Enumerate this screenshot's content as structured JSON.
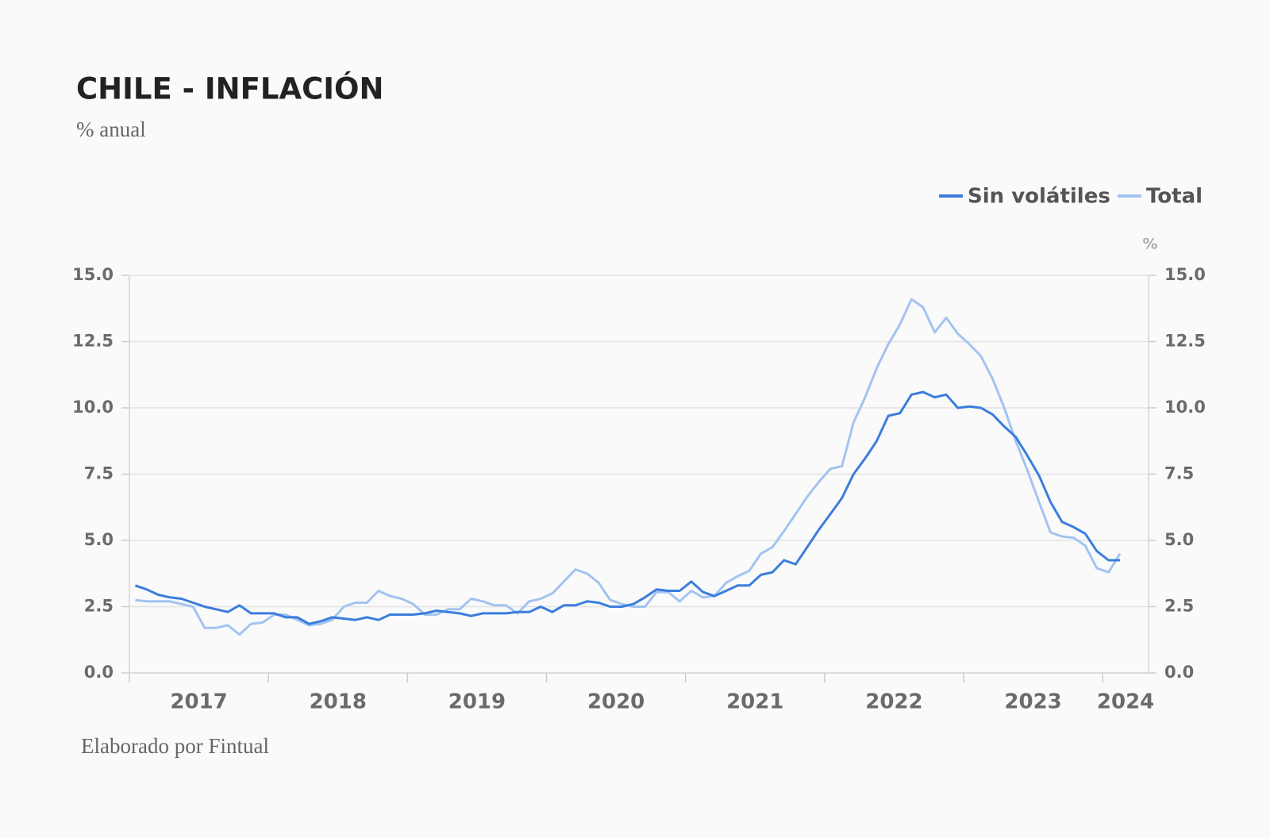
{
  "chart_data": {
    "type": "line",
    "title": "CHILE - INFLACIÓN",
    "subtitle": "% anual",
    "footer": "Elaborado por Fintual",
    "y2_label": "%",
    "x": [
      2017.042,
      2017.125,
      2017.208,
      2017.292,
      2017.375,
      2017.458,
      2017.542,
      2017.625,
      2017.708,
      2017.792,
      2017.875,
      2017.958,
      2018.042,
      2018.125,
      2018.208,
      2018.292,
      2018.375,
      2018.458,
      2018.542,
      2018.625,
      2018.708,
      2018.792,
      2018.875,
      2018.958,
      2019.042,
      2019.125,
      2019.208,
      2019.292,
      2019.375,
      2019.458,
      2019.542,
      2019.625,
      2019.708,
      2019.792,
      2019.875,
      2019.958,
      2020.042,
      2020.125,
      2020.208,
      2020.292,
      2020.375,
      2020.458,
      2020.542,
      2020.625,
      2020.708,
      2020.792,
      2020.875,
      2020.958,
      2021.042,
      2021.125,
      2021.208,
      2021.292,
      2021.375,
      2021.458,
      2021.542,
      2021.625,
      2021.708,
      2021.792,
      2021.875,
      2021.958,
      2022.042,
      2022.125,
      2022.208,
      2022.292,
      2022.375,
      2022.458,
      2022.542,
      2022.625,
      2022.708,
      2022.792,
      2022.875,
      2022.958,
      2023.042,
      2023.125,
      2023.208,
      2023.292,
      2023.375,
      2023.458,
      2023.542,
      2023.625,
      2023.708,
      2023.792,
      2023.875,
      2023.958,
      2024.042,
      2024.125
    ],
    "series": [
      {
        "name": "Sin volátiles",
        "color": "#3b7ddd",
        "values": [
          3.3,
          3.15,
          2.95,
          2.85,
          2.8,
          2.65,
          2.5,
          2.4,
          2.3,
          2.55,
          2.25,
          2.25,
          2.25,
          2.1,
          2.1,
          1.85,
          1.95,
          2.1,
          2.05,
          2.0,
          2.1,
          2.0,
          2.2,
          2.2,
          2.2,
          2.25,
          2.35,
          2.3,
          2.25,
          2.15,
          2.25,
          2.25,
          2.25,
          2.3,
          2.3,
          2.5,
          2.3,
          2.55,
          2.55,
          2.7,
          2.65,
          2.5,
          2.5,
          2.6,
          2.85,
          3.15,
          3.1,
          3.1,
          3.45,
          3.05,
          2.9,
          3.1,
          3.3,
          3.3,
          3.7,
          3.8,
          4.25,
          4.1,
          4.75,
          5.4,
          6.0,
          6.6,
          7.5,
          8.1,
          8.75,
          9.7,
          9.8,
          10.5,
          10.6,
          10.4,
          10.5,
          10.0,
          10.05,
          10.0,
          9.75,
          9.3,
          8.9,
          8.2,
          7.45,
          6.45,
          5.7,
          5.5,
          5.25,
          4.6,
          4.25,
          4.25
        ]
      },
      {
        "name": "Total",
        "color": "#a3c3f0",
        "values": [
          2.75,
          2.7,
          2.7,
          2.7,
          2.6,
          2.5,
          1.7,
          1.7,
          1.8,
          1.45,
          1.85,
          1.9,
          2.2,
          2.2,
          2.0,
          1.8,
          1.85,
          2.0,
          2.5,
          2.65,
          2.65,
          3.1,
          2.9,
          2.8,
          2.6,
          2.2,
          2.2,
          2.4,
          2.4,
          2.8,
          2.7,
          2.55,
          2.55,
          2.25,
          2.7,
          2.8,
          3.0,
          3.45,
          3.9,
          3.75,
          3.4,
          2.75,
          2.6,
          2.5,
          2.5,
          3.05,
          3.05,
          2.7,
          3.1,
          2.85,
          2.9,
          3.4,
          3.65,
          3.85,
          4.5,
          4.75,
          5.35,
          6.0,
          6.65,
          7.2,
          7.7,
          7.8,
          9.45,
          10.4,
          11.5,
          12.4,
          13.15,
          14.1,
          13.8,
          12.85,
          13.4,
          12.8,
          12.4,
          11.95,
          11.1,
          10.0,
          8.75,
          7.65,
          6.45,
          5.3,
          5.15,
          5.1,
          4.8,
          3.95,
          3.8,
          4.5
        ]
      }
    ],
    "xlim": [
      2017,
      2024.33
    ],
    "xticks": [
      2017,
      2018,
      2019,
      2020,
      2021,
      2022,
      2023,
      2024
    ],
    "ylim": [
      0,
      15
    ],
    "yticks": [
      {
        "value": 0,
        "label": "0.0"
      },
      {
        "value": 2.5,
        "label": "2.5"
      },
      {
        "value": 5,
        "label": "5.0"
      },
      {
        "value": 7.5,
        "label": "7.5"
      },
      {
        "value": 10,
        "label": "10.0"
      },
      {
        "value": 12.5,
        "label": "12.5"
      },
      {
        "value": 15,
        "label": "15.0"
      }
    ],
    "y2lim": [
      0,
      15
    ],
    "y2ticks": [
      {
        "value": 0,
        "label": "0.0"
      },
      {
        "value": 2.5,
        "label": "2.5"
      },
      {
        "value": 5,
        "label": "5.0"
      },
      {
        "value": 7.5,
        "label": "7.5"
      },
      {
        "value": 10,
        "label": "10.0"
      },
      {
        "value": 12.5,
        "label": "12.5"
      },
      {
        "value": 15,
        "label": "15.0"
      }
    ],
    "grid": true,
    "legend": "top-right"
  }
}
